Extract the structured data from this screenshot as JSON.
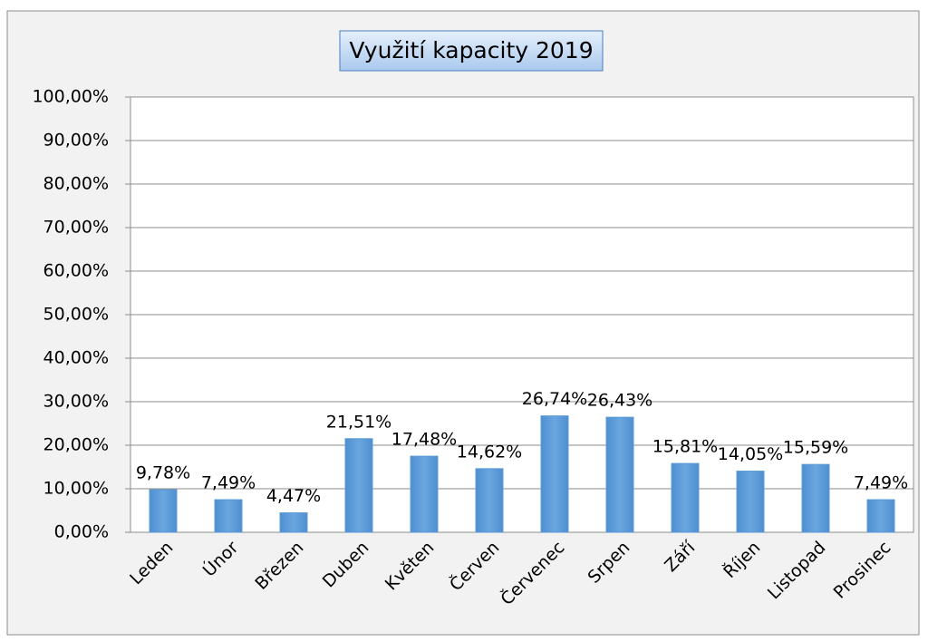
{
  "chart_data": {
    "type": "bar",
    "title": "Využití kapacity 2019",
    "categories": [
      "Leden",
      "Únor",
      "Březen",
      "Duben",
      "Květen",
      "Červen",
      "Červenec",
      "Srpen",
      "Září",
      "Říjen",
      "Listopad",
      "Prosinec"
    ],
    "values": [
      9.78,
      7.49,
      4.47,
      21.51,
      17.48,
      14.62,
      26.74,
      26.43,
      15.81,
      14.05,
      15.59,
      7.49
    ],
    "value_labels": [
      "9,78%",
      "7,49%",
      "4,47%",
      "21,51%",
      "17,48%",
      "14,62%",
      "26,74%",
      "26,43%",
      "15,81%",
      "14,05%",
      "15,59%",
      "7,49%"
    ],
    "color": "#5b9bd5",
    "ylim": [
      0,
      100
    ],
    "yticks": [
      {
        "value": 0,
        "label": "0,00%"
      },
      {
        "value": 10,
        "label": "10,00%"
      },
      {
        "value": 20,
        "label": "20,00%"
      },
      {
        "value": 30,
        "label": "30,00%"
      },
      {
        "value": 40,
        "label": "40,00%"
      },
      {
        "value": 50,
        "label": "50,00%"
      },
      {
        "value": 60,
        "label": "60,00%"
      },
      {
        "value": 70,
        "label": "70,00%"
      },
      {
        "value": 80,
        "label": "80,00%"
      },
      {
        "value": 90,
        "label": "90,00%"
      },
      {
        "value": 100,
        "label": "100,00%"
      }
    ],
    "grid": true
  }
}
